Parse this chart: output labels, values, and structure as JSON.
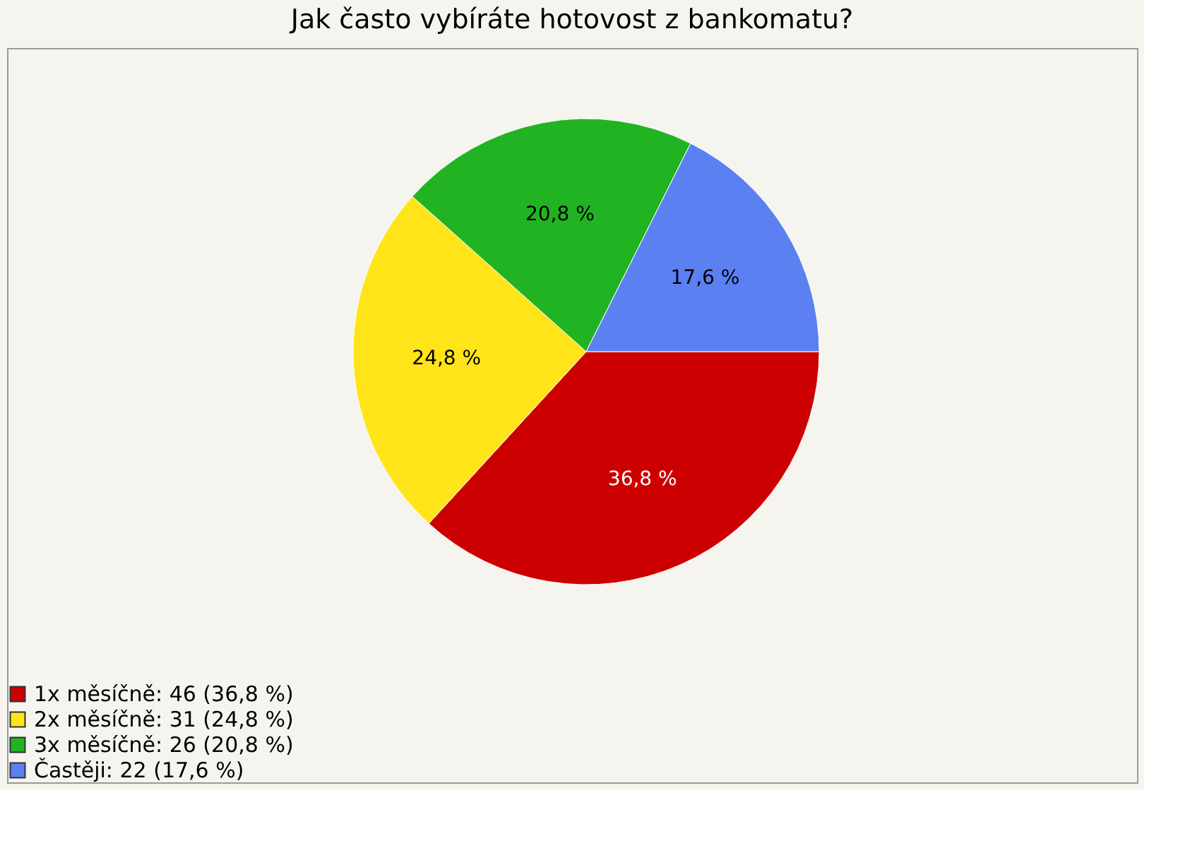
{
  "chart_data": {
    "type": "pie",
    "title": "Jak často vybíráte hotovost z bankomatu?",
    "categories": [
      "1x měsíčně: 46 (36,8 %)",
      "2x měsíčně: 31 (24,8 %)",
      "3x měsíčně: 26 (20,8 %)",
      "Častěji: 22 (17,6 %)"
    ],
    "values": [
      36.8,
      24.8,
      20.8,
      17.6
    ],
    "colors": [
      "#cc0000",
      "#ffe41a",
      "#22b322",
      "#5b80f2"
    ],
    "value_labels": [
      "36,8 %",
      "24,8 %",
      "20,8 %",
      "17,6 %"
    ],
    "legend": "bottom left"
  }
}
